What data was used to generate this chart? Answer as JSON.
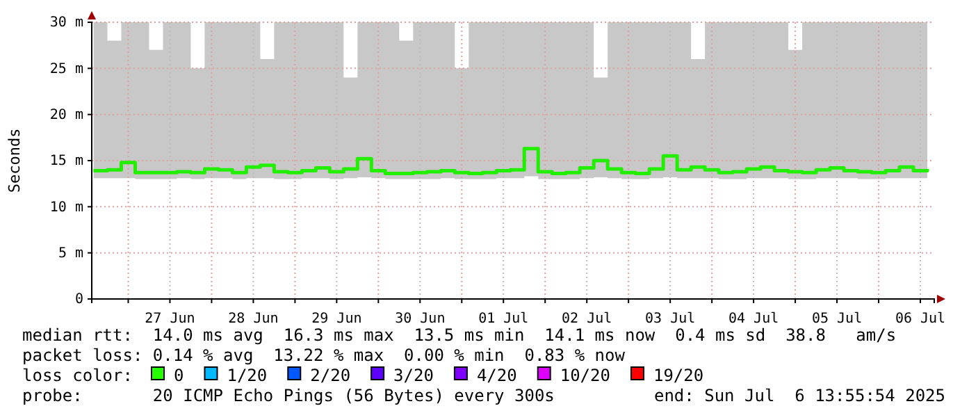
{
  "chart_data": {
    "type": "step",
    "ylabel": "Seconds",
    "xlim": [
      "2025-06-26T13:30",
      "2025-07-06T16:00"
    ],
    "xticks": [
      {
        "value": "2025-06-27T00:00",
        "label": null
      },
      {
        "value": "2025-06-27T12:00",
        "label": "27 Jun"
      },
      {
        "value": "2025-06-28T00:00",
        "label": null
      },
      {
        "value": "2025-06-28T12:00",
        "label": "28 Jun"
      },
      {
        "value": "2025-06-29T00:00",
        "label": null
      },
      {
        "value": "2025-06-29T12:00",
        "label": "29 Jun"
      },
      {
        "value": "2025-06-30T00:00",
        "label": null
      },
      {
        "value": "2025-06-30T12:00",
        "label": "30 Jun"
      },
      {
        "value": "2025-07-01T00:00",
        "label": null
      },
      {
        "value": "2025-07-01T12:00",
        "label": "01 Jul"
      },
      {
        "value": "2025-07-02T00:00",
        "label": null
      },
      {
        "value": "2025-07-02T12:00",
        "label": "02 Jul"
      },
      {
        "value": "2025-07-03T00:00",
        "label": null
      },
      {
        "value": "2025-07-03T12:00",
        "label": "03 Jul"
      },
      {
        "value": "2025-07-04T00:00",
        "label": null
      },
      {
        "value": "2025-07-04T12:00",
        "label": "04 Jul"
      },
      {
        "value": "2025-07-05T00:00",
        "label": null
      },
      {
        "value": "2025-07-05T12:00",
        "label": "05 Jul"
      },
      {
        "value": "2025-07-06T00:00",
        "label": null
      },
      {
        "value": "2025-07-06T12:00",
        "label": "06 Jul"
      }
    ],
    "ylim": [
      0,
      30
    ],
    "yticks": [
      {
        "value": 0,
        "label": "0"
      },
      {
        "value": 5,
        "label": "5 m"
      },
      {
        "value": 10,
        "label": "10 m"
      },
      {
        "value": 15,
        "label": "15 m"
      },
      {
        "value": 20,
        "label": "20 m"
      },
      {
        "value": 25,
        "label": "25 m"
      },
      {
        "value": 30,
        "label": "30 m"
      }
    ],
    "grid": true,
    "marker": "none",
    "line_style": "solid",
    "x": [
      "2025-06-26T14:00",
      "2025-06-26T18:00",
      "2025-06-26T22:00",
      "2025-06-27T02:00",
      "2025-06-27T06:00",
      "2025-06-27T10:00",
      "2025-06-27T14:00",
      "2025-06-27T18:00",
      "2025-06-27T22:00",
      "2025-06-28T02:00",
      "2025-06-28T06:00",
      "2025-06-28T10:00",
      "2025-06-28T14:00",
      "2025-06-28T18:00",
      "2025-06-28T22:00",
      "2025-06-29T02:00",
      "2025-06-29T06:00",
      "2025-06-29T10:00",
      "2025-06-29T14:00",
      "2025-06-29T18:00",
      "2025-06-29T22:00",
      "2025-06-30T02:00",
      "2025-06-30T06:00",
      "2025-06-30T10:00",
      "2025-06-30T14:00",
      "2025-06-30T18:00",
      "2025-06-30T22:00",
      "2025-07-01T02:00",
      "2025-07-01T06:00",
      "2025-07-01T10:00",
      "2025-07-01T14:00",
      "2025-07-01T18:00",
      "2025-07-01T22:00",
      "2025-07-02T02:00",
      "2025-07-02T06:00",
      "2025-07-02T10:00",
      "2025-07-02T14:00",
      "2025-07-02T18:00",
      "2025-07-02T22:00",
      "2025-07-03T02:00",
      "2025-07-03T06:00",
      "2025-07-03T10:00",
      "2025-07-03T14:00",
      "2025-07-03T18:00",
      "2025-07-03T22:00",
      "2025-07-04T02:00",
      "2025-07-04T06:00",
      "2025-07-04T10:00",
      "2025-07-04T14:00",
      "2025-07-04T18:00",
      "2025-07-04T22:00",
      "2025-07-05T02:00",
      "2025-07-05T06:00",
      "2025-07-05T10:00",
      "2025-07-05T14:00",
      "2025-07-05T18:00",
      "2025-07-05T22:00",
      "2025-07-06T02:00",
      "2025-07-06T06:00",
      "2025-07-06T10:00",
      "2025-07-06T14:00"
    ],
    "series": [
      {
        "color": "#22ee00",
        "values": [
          13.9,
          14.0,
          14.8,
          13.7,
          13.7,
          13.7,
          13.8,
          13.7,
          14.1,
          14.0,
          13.7,
          14.3,
          14.5,
          13.8,
          13.7,
          13.9,
          14.2,
          13.8,
          14.1,
          15.2,
          13.9,
          13.6,
          13.6,
          13.7,
          13.8,
          13.9,
          13.7,
          13.6,
          13.7,
          13.9,
          14.0,
          16.3,
          13.8,
          13.6,
          13.7,
          14.2,
          15.0,
          14.1,
          13.7,
          13.6,
          14.1,
          15.5,
          14.0,
          14.3,
          14.0,
          13.7,
          13.8,
          14.1,
          14.3,
          13.9,
          13.8,
          13.7,
          14.0,
          14.2,
          13.9,
          13.8,
          13.7,
          13.9,
          14.3,
          13.9,
          14.1
        ],
        "lower": [
          13.1,
          13.1,
          13.1,
          13.0,
          13.0,
          13.0,
          13.1,
          13.0,
          13.1,
          13.1,
          13.0,
          13.1,
          13.1,
          13.0,
          13.0,
          13.1,
          13.1,
          13.0,
          13.1,
          13.2,
          13.1,
          13.0,
          13.0,
          13.0,
          13.0,
          13.1,
          13.0,
          13.0,
          13.0,
          13.1,
          13.1,
          13.3,
          13.0,
          13.0,
          13.0,
          13.1,
          13.2,
          13.1,
          13.0,
          13.0,
          13.1,
          13.2,
          13.1,
          13.1,
          13.1,
          13.0,
          13.0,
          13.1,
          13.1,
          13.1,
          13.0,
          13.0,
          13.1,
          13.1,
          13.1,
          13.0,
          13.0,
          13.1,
          13.1,
          13.1,
          13.1
        ],
        "upper": [
          30,
          28,
          30,
          30,
          27,
          30,
          30,
          25,
          30,
          30,
          30,
          30,
          26,
          30,
          30,
          30,
          30,
          30,
          24,
          30,
          30,
          30,
          28,
          30,
          30,
          30,
          25,
          30,
          30,
          30,
          30,
          30,
          30,
          30,
          30,
          30,
          24,
          30,
          30,
          30,
          30,
          30,
          30,
          26,
          30,
          30,
          30,
          30,
          30,
          30,
          27,
          30,
          30,
          30,
          30,
          30,
          30,
          30,
          30,
          30,
          30
        ]
      }
    ],
    "annotations": [
      "median rtt:  14.0 ms avg  16.3 ms max  13.5 ms min  14.1 ms now  0.4 ms sd  38.8   am/s",
      "packet loss: 0.14 % avg  13.22 % max  0.00 % min  0.83 % now",
      "loss color:",
      "0",
      "1/20",
      "2/20",
      "3/20",
      "4/20",
      "10/20",
      "19/20",
      "probe:       20 ICMP Echo Pings (56 Bytes) every 300s",
      "end: Sun Jul  6 13:55:54 2025"
    ]
  }
}
